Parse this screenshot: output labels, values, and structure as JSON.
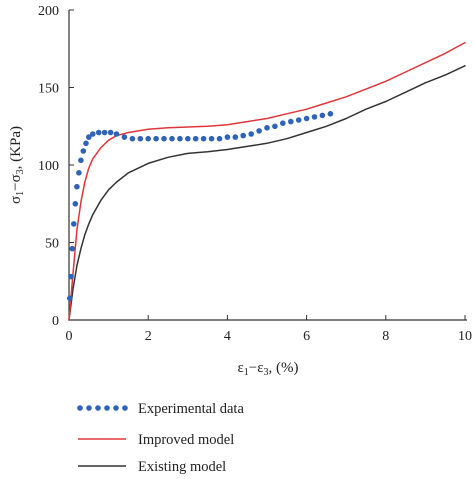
{
  "chart_data": {
    "type": "line",
    "xlabel": {
      "main": "ε",
      "sub1": "1",
      "mid": "−ε",
      "sub2": "3",
      "tail": ", (%)"
    },
    "ylabel": {
      "main": "σ",
      "sub1": "1",
      "mid": "−σ",
      "sub2": "3",
      "tail": ", (KPa)"
    },
    "xlim": [
      0,
      10
    ],
    "ylim": [
      0,
      200
    ],
    "xticks": [
      "0",
      "2",
      "4",
      "6",
      "8",
      "10"
    ],
    "yticks": [
      "0",
      "50",
      "100",
      "150",
      "200"
    ],
    "grid": false,
    "legend_position": "bottom",
    "series": [
      {
        "name": "Experimental data",
        "style": "dotted-markers",
        "color": "#2e63b8",
        "x": [
          0.02,
          0.05,
          0.08,
          0.12,
          0.16,
          0.2,
          0.25,
          0.3,
          0.36,
          0.43,
          0.5,
          0.6,
          0.75,
          0.9,
          1.05,
          1.2,
          1.4,
          1.6,
          1.8,
          2.0,
          2.2,
          2.4,
          2.6,
          2.8,
          3.0,
          3.2,
          3.4,
          3.6,
          3.8,
          4.0,
          4.2,
          4.4,
          4.6,
          4.8,
          5.0,
          5.2,
          5.4,
          5.6,
          5.8,
          6.0,
          6.2,
          6.4,
          6.6
        ],
        "y": [
          14,
          28,
          46,
          62,
          75,
          86,
          95,
          103,
          109,
          114,
          118,
          120,
          121,
          121,
          121,
          120,
          118,
          117,
          117,
          117,
          117,
          117,
          117,
          117,
          117,
          117,
          117,
          117,
          117,
          118,
          118,
          119,
          120,
          122,
          124,
          125,
          127,
          128,
          129,
          130,
          131,
          132,
          133
        ]
      },
      {
        "name": "Improved model",
        "style": "line",
        "color": "#e0363a",
        "x": [
          0,
          0.05,
          0.1,
          0.2,
          0.3,
          0.4,
          0.5,
          0.6,
          0.8,
          1.0,
          1.2,
          1.5,
          2.0,
          2.5,
          3.0,
          3.5,
          4.0,
          4.5,
          5.0,
          5.5,
          6.0,
          6.5,
          7.0,
          7.5,
          8.0,
          8.5,
          9.0,
          9.5,
          10.0
        ],
        "y": [
          0,
          15,
          30,
          58,
          76,
          89,
          98,
          104,
          111,
          116,
          119,
          121,
          123,
          124,
          124.5,
          125,
          126,
          128,
          130,
          133,
          136,
          140,
          144,
          149,
          154,
          160,
          166,
          172,
          179
        ]
      },
      {
        "name": "Existing model",
        "style": "line",
        "color": "#333333",
        "x": [
          0,
          0.05,
          0.1,
          0.2,
          0.3,
          0.4,
          0.5,
          0.6,
          0.8,
          1.0,
          1.2,
          1.5,
          2.0,
          2.5,
          3.0,
          3.5,
          4.0,
          4.5,
          5.0,
          5.5,
          6.0,
          6.5,
          7.0,
          7.5,
          8.0,
          8.5,
          9.0,
          9.5,
          10.0
        ],
        "y": [
          0,
          10,
          20,
          35,
          46,
          55,
          62,
          68,
          77,
          84,
          89,
          95,
          101,
          105,
          107.5,
          108.5,
          110,
          112,
          114,
          117,
          121,
          125,
          130,
          136,
          141,
          147,
          153,
          158,
          164
        ]
      }
    ]
  }
}
